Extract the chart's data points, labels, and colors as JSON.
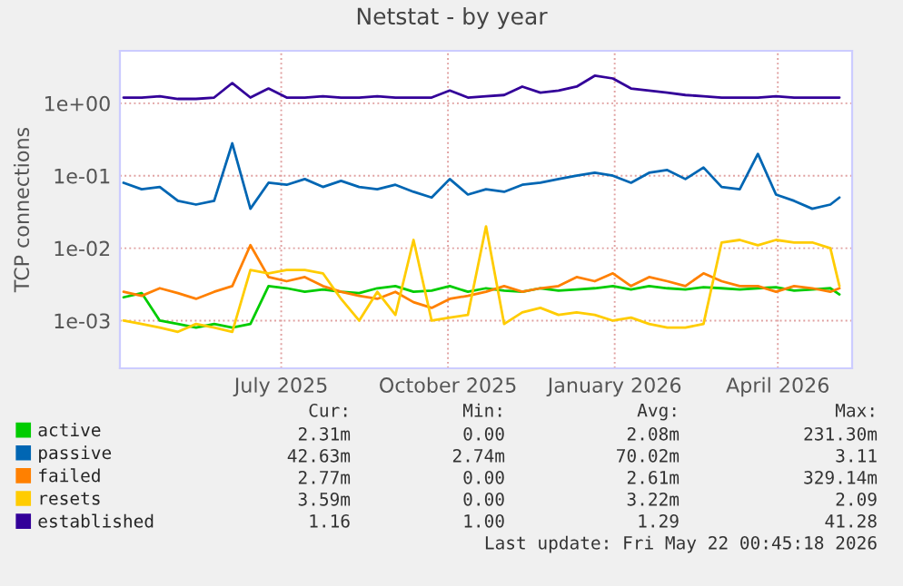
{
  "chart_data": {
    "type": "line",
    "title": "Netstat - by year",
    "ylabel": "TCP connections",
    "x": [
      "2025-04-20",
      "2025-04-30",
      "2025-05-10",
      "2025-05-20",
      "2025-05-30",
      "2025-06-09",
      "2025-06-19",
      "2025-06-29",
      "2025-07-09",
      "2025-07-19",
      "2025-07-29",
      "2025-08-08",
      "2025-08-18",
      "2025-08-28",
      "2025-09-07",
      "2025-09-17",
      "2025-09-27",
      "2025-10-07",
      "2025-10-17",
      "2025-10-27",
      "2025-11-06",
      "2025-11-16",
      "2025-11-26",
      "2025-12-06",
      "2025-12-16",
      "2025-12-26",
      "2026-01-05",
      "2026-01-15",
      "2026-01-25",
      "2026-02-04",
      "2026-02-14",
      "2026-02-24",
      "2026-03-06",
      "2026-03-16",
      "2026-03-26",
      "2026-04-05",
      "2026-04-15",
      "2026-04-25",
      "2026-05-05",
      "2026-05-15",
      "2026-05-20"
    ],
    "series": [
      {
        "name": "active",
        "color": "#00cc00",
        "values": [
          0.0021,
          0.0024,
          0.001,
          0.0009,
          0.0008,
          0.0009,
          0.0008,
          0.0009,
          0.003,
          0.0028,
          0.0025,
          0.0027,
          0.0025,
          0.0024,
          0.0028,
          0.003,
          0.0025,
          0.0026,
          0.003,
          0.0025,
          0.0028,
          0.0026,
          0.0025,
          0.0028,
          0.0026,
          0.0027,
          0.0028,
          0.003,
          0.0027,
          0.003,
          0.0028,
          0.0027,
          0.0029,
          0.0028,
          0.0027,
          0.0028,
          0.0029,
          0.0026,
          0.0027,
          0.0028,
          0.0023
        ]
      },
      {
        "name": "passive",
        "color": "#0066b3",
        "values": [
          0.08,
          0.065,
          0.07,
          0.045,
          0.04,
          0.045,
          0.28,
          0.035,
          0.08,
          0.075,
          0.09,
          0.07,
          0.085,
          0.07,
          0.065,
          0.075,
          0.06,
          0.05,
          0.09,
          0.055,
          0.065,
          0.06,
          0.075,
          0.08,
          0.09,
          0.1,
          0.11,
          0.1,
          0.08,
          0.11,
          0.12,
          0.09,
          0.13,
          0.07,
          0.065,
          0.2,
          0.055,
          0.045,
          0.035,
          0.04,
          0.05
        ]
      },
      {
        "name": "failed",
        "color": "#ff8000",
        "values": [
          0.0025,
          0.0022,
          0.0028,
          0.0024,
          0.002,
          0.0025,
          0.003,
          0.011,
          0.004,
          0.0035,
          0.004,
          0.003,
          0.0025,
          0.0022,
          0.002,
          0.0025,
          0.0018,
          0.0015,
          0.002,
          0.0022,
          0.0025,
          0.003,
          0.0025,
          0.0028,
          0.003,
          0.004,
          0.0035,
          0.0045,
          0.003,
          0.004,
          0.0035,
          0.003,
          0.0045,
          0.0035,
          0.003,
          0.003,
          0.0025,
          0.003,
          0.0028,
          0.0025,
          0.0028
        ]
      },
      {
        "name": "resets",
        "color": "#ffcc00",
        "values": [
          0.001,
          0.0009,
          0.0008,
          0.0007,
          0.0009,
          0.0008,
          0.0007,
          0.005,
          0.0045,
          0.005,
          0.005,
          0.0045,
          0.002,
          0.001,
          0.0025,
          0.0012,
          0.013,
          0.001,
          0.0011,
          0.0012,
          0.02,
          0.0009,
          0.0013,
          0.0015,
          0.0012,
          0.0013,
          0.0012,
          0.001,
          0.0011,
          0.0009,
          0.0008,
          0.0008,
          0.0009,
          0.012,
          0.013,
          0.011,
          0.013,
          0.012,
          0.012,
          0.01,
          0.003
        ]
      },
      {
        "name": "established",
        "color": "#330099",
        "values": [
          1.2,
          1.2,
          1.25,
          1.15,
          1.15,
          1.2,
          1.9,
          1.2,
          1.6,
          1.2,
          1.2,
          1.25,
          1.2,
          1.2,
          1.25,
          1.2,
          1.2,
          1.2,
          1.5,
          1.2,
          1.25,
          1.3,
          1.7,
          1.4,
          1.5,
          1.7,
          2.4,
          2.2,
          1.6,
          1.5,
          1.4,
          1.3,
          1.25,
          1.2,
          1.2,
          1.2,
          1.25,
          1.2,
          1.2,
          1.2,
          1.2
        ]
      }
    ],
    "log": "y",
    "ylim": [
      0.00022,
      5.3
    ],
    "yticks": [
      {
        "value": 0.001,
        "label": "1e-03"
      },
      {
        "value": 0.01,
        "label": "1e-02"
      },
      {
        "value": 0.1,
        "label": "1e-01"
      },
      {
        "value": 1,
        "label": "1e+00"
      }
    ],
    "xlim": [
      "2025-04-18",
      "2026-05-27"
    ],
    "xticks": [
      {
        "value": "2025-07-16",
        "label": "July 2025"
      },
      {
        "value": "2025-10-16",
        "label": "October 2025"
      },
      {
        "value": "2026-01-16",
        "label": "January 2026"
      },
      {
        "value": "2026-04-16",
        "label": "April 2026"
      }
    ],
    "grid": true,
    "legend": "bottom left",
    "marker": "none",
    "line_style": "solid",
    "annotations": [
      "Cur:",
      "Min:",
      "Avg:",
      "Max:",
      "2.31m",
      "0.00",
      "2.08m",
      "231.30m",
      "42.63m",
      "2.74m",
      "70.02m",
      "3.11",
      "2.77m",
      "0.00",
      "2.61m",
      "329.14m",
      "3.59m",
      "0.00",
      "3.22m",
      "2.09",
      "1.16",
      "1.00",
      "1.29",
      "41.28",
      "Last update: Fri May 22 00:45:18 2026"
    ]
  }
}
